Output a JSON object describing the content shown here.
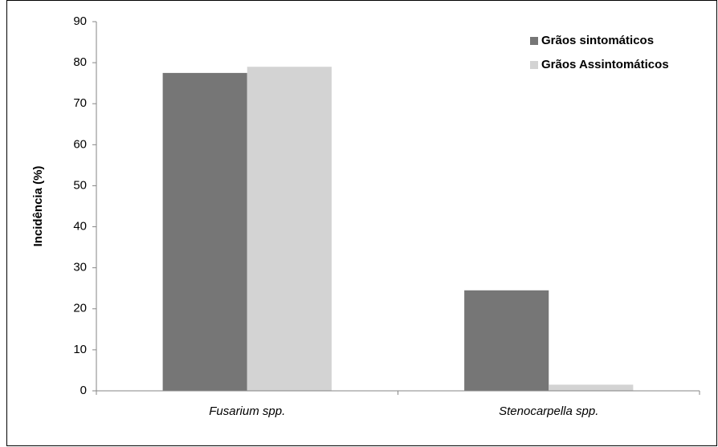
{
  "chart_data": {
    "type": "bar",
    "y_label": "Incidência (%)",
    "categories": [
      "Fusarium spp.",
      "Stenocarpella spp."
    ],
    "series": [
      {
        "name": "Grãos sintomáticos",
        "color": "#767676",
        "values": [
          77.5,
          24.5
        ]
      },
      {
        "name": "Grãos Assintomáticos",
        "color": "#d3d3d3",
        "values": [
          79,
          1.5
        ]
      }
    ],
    "ylim": [
      0,
      90
    ],
    "yticks": [
      0,
      10,
      20,
      30,
      40,
      50,
      60,
      70,
      80,
      90
    ],
    "legend": "top-right"
  }
}
